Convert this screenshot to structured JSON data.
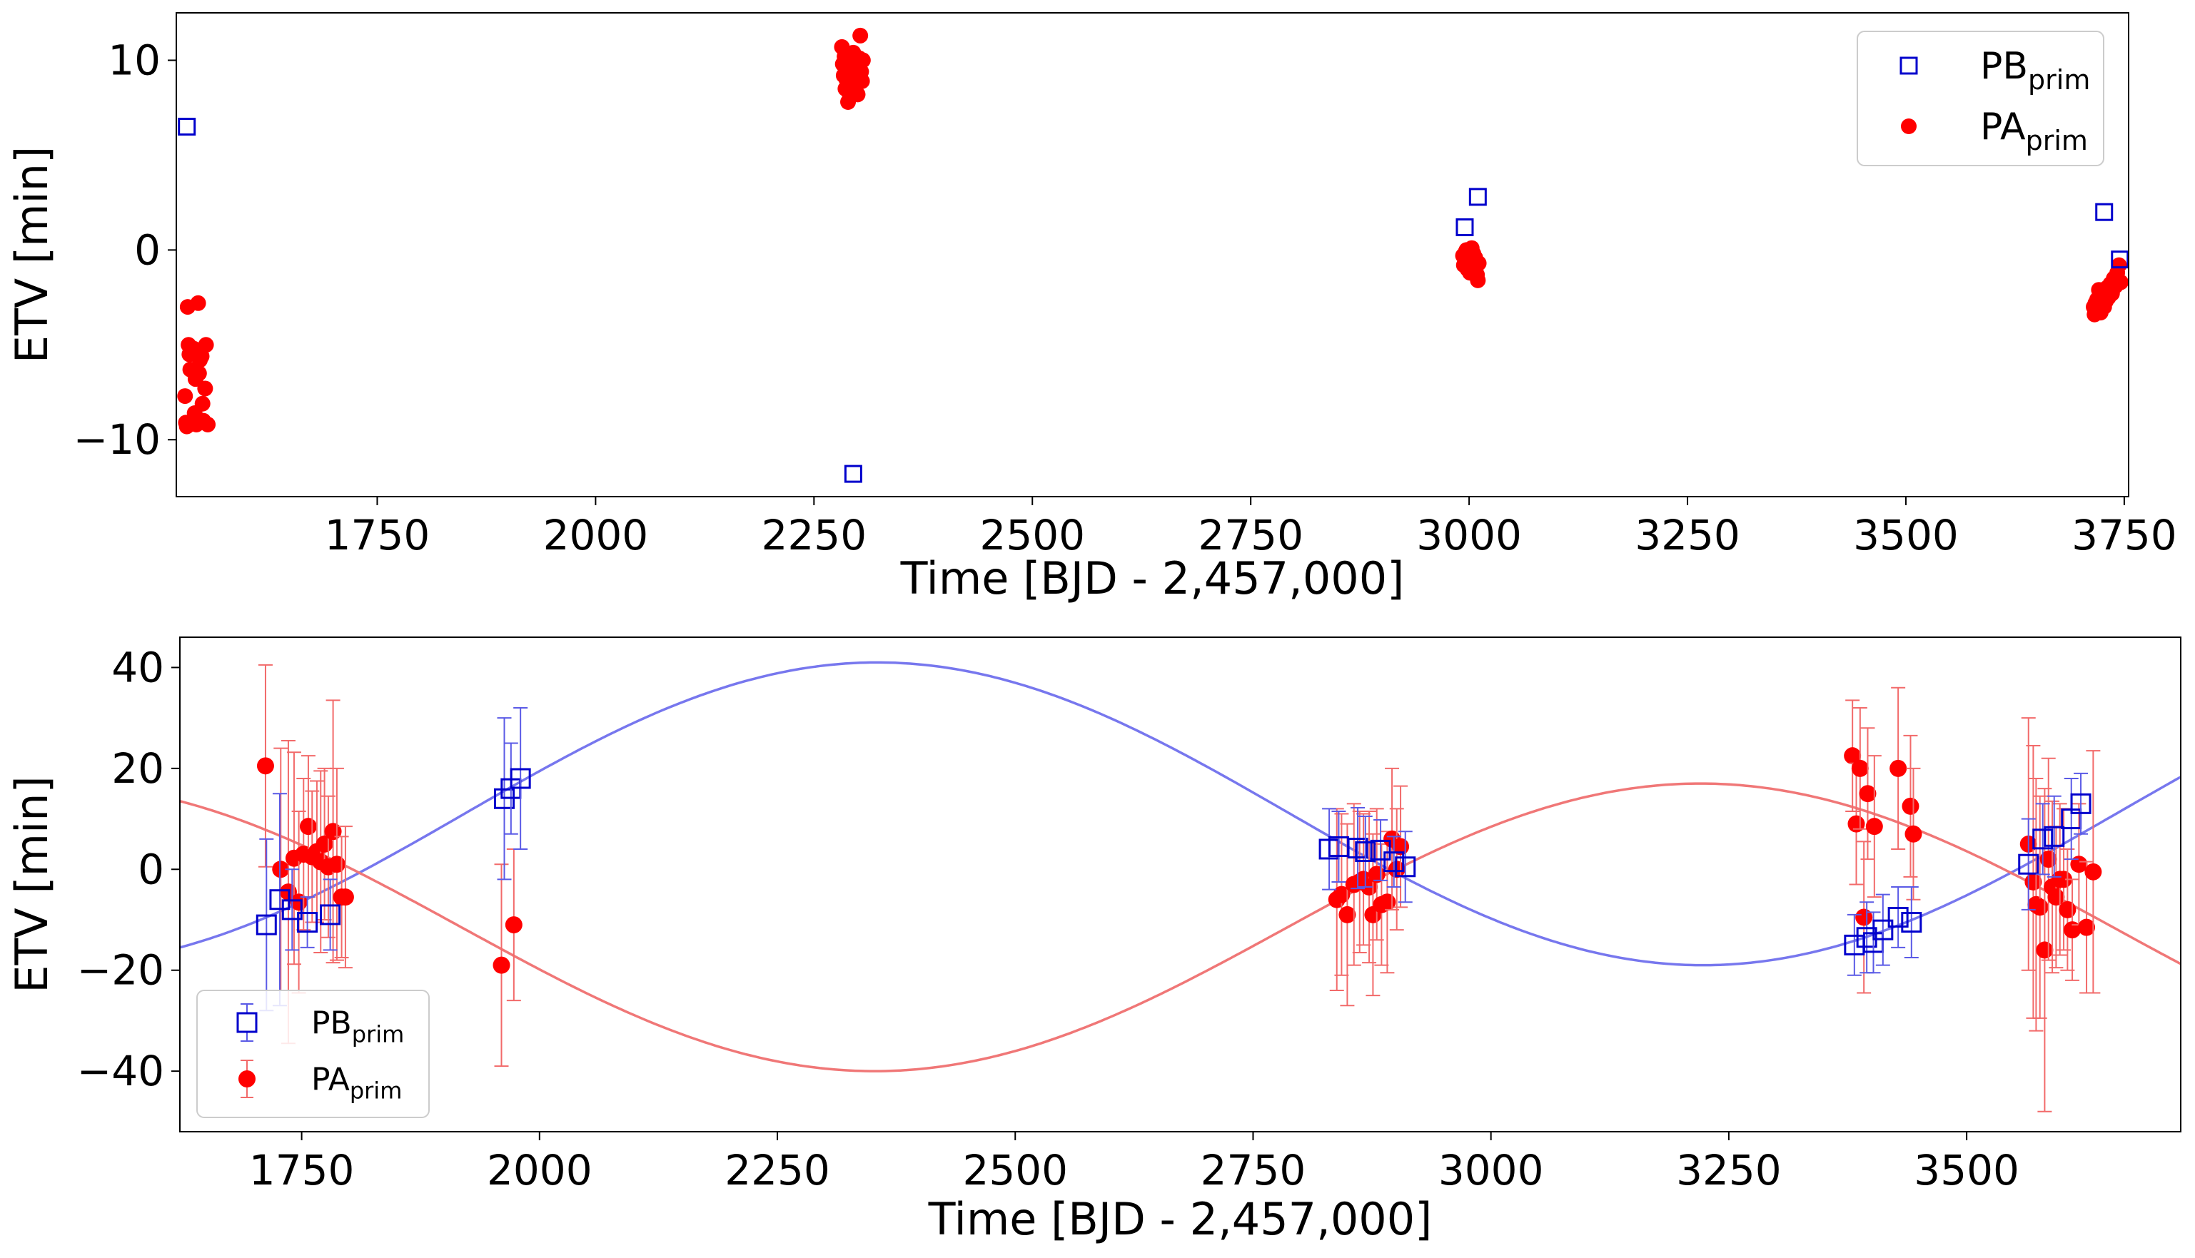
{
  "chart_data": [
    {
      "type": "scatter",
      "xlabel": "Time [BJD - 2,457,000]",
      "ylabel": "ETV [min]",
      "xlim": [
        1520,
        3755
      ],
      "ylim": [
        -13,
        12.5
      ],
      "xticks": [
        1750,
        2000,
        2250,
        2500,
        2750,
        3000,
        3250,
        3500,
        3750
      ],
      "yticks": [
        -10,
        0,
        10
      ],
      "legend": {
        "position": "top-right",
        "entries": [
          {
            "base": "PB",
            "sub": "prim",
            "series": "PB_prim"
          },
          {
            "base": "PA",
            "sub": "prim",
            "series": "PA_prim"
          }
        ]
      },
      "series": [
        {
          "name": "PB_prim",
          "marker": "open-square",
          "color": "#0000cc",
          "points": [
            [
              1532,
              6.5
            ],
            [
              2295,
              -11.8
            ],
            [
              2995,
              1.2
            ],
            [
              3010,
              2.8
            ],
            [
              3727,
              2.0
            ],
            [
              3745,
              -0.5
            ]
          ]
        },
        {
          "name": "PA_prim",
          "marker": "filled-circle",
          "color": "#ff0000",
          "points": [
            [
              1530,
              -7.7
            ],
            [
              1531,
              -9.1
            ],
            [
              1532,
              -9.3
            ],
            [
              1533,
              -3.0
            ],
            [
              1534,
              -5.0
            ],
            [
              1535,
              -5.5
            ],
            [
              1536,
              -6.3
            ],
            [
              1538,
              -9.0
            ],
            [
              1540,
              -5.2
            ],
            [
              1541,
              -8.6
            ],
            [
              1542,
              -6.8
            ],
            [
              1543,
              -9.2
            ],
            [
              1545,
              -2.8
            ],
            [
              1546,
              -6.5
            ],
            [
              1547,
              -5.8
            ],
            [
              1549,
              -5.6
            ],
            [
              1550,
              -8.1
            ],
            [
              1551,
              -9.0
            ],
            [
              1553,
              -7.3
            ],
            [
              1554,
              -5.0
            ],
            [
              1556,
              -9.2
            ],
            [
              2282,
              10.7
            ],
            [
              2283,
              9.8
            ],
            [
              2284,
              9.2
            ],
            [
              2285,
              10.2
            ],
            [
              2286,
              8.5
            ],
            [
              2287,
              9.0
            ],
            [
              2288,
              9.8
            ],
            [
              2289,
              7.8
            ],
            [
              2290,
              8.3
            ],
            [
              2291,
              9.5
            ],
            [
              2292,
              10.0
            ],
            [
              2293,
              8.8
            ],
            [
              2294,
              9.3
            ],
            [
              2295,
              10.4
            ],
            [
              2296,
              8.7
            ],
            [
              2297,
              9.7
            ],
            [
              2298,
              10.2
            ],
            [
              2299,
              9.0
            ],
            [
              2300,
              8.2
            ],
            [
              2301,
              9.6
            ],
            [
              2302,
              10.1
            ],
            [
              2303,
              11.3
            ],
            [
              2304,
              9.4
            ],
            [
              2305,
              8.9
            ],
            [
              2306,
              10.0
            ],
            [
              2993,
              -0.3
            ],
            [
              2994,
              -0.8
            ],
            [
              2996,
              -0.1
            ],
            [
              2997,
              0.0
            ],
            [
              2998,
              -1.0
            ],
            [
              2999,
              -0.5
            ],
            [
              3000,
              -0.3
            ],
            [
              3001,
              -1.2
            ],
            [
              3002,
              -0.6
            ],
            [
              3003,
              0.1
            ],
            [
              3004,
              -0.8
            ],
            [
              3005,
              -0.2
            ],
            [
              3006,
              -1.1
            ],
            [
              3007,
              -0.4
            ],
            [
              3008,
              -0.9
            ],
            [
              3009,
              -1.3
            ],
            [
              3010,
              -1.6
            ],
            [
              3011,
              -0.7
            ],
            [
              3715,
              -3.0
            ],
            [
              3716,
              -3.4
            ],
            [
              3717,
              -2.8
            ],
            [
              3718,
              -3.2
            ],
            [
              3719,
              -2.6
            ],
            [
              3720,
              -3.1
            ],
            [
              3721,
              -2.1
            ],
            [
              3722,
              -2.9
            ],
            [
              3723,
              -3.3
            ],
            [
              3724,
              -2.5
            ],
            [
              3725,
              -2.8
            ],
            [
              3726,
              -2.2
            ],
            [
              3727,
              -3.0
            ],
            [
              3728,
              -2.4
            ],
            [
              3729,
              -2.7
            ],
            [
              3730,
              -2.0
            ],
            [
              3732,
              -2.5
            ],
            [
              3734,
              -1.8
            ],
            [
              3736,
              -2.3
            ],
            [
              3738,
              -1.5
            ],
            [
              3740,
              -1.9
            ],
            [
              3742,
              -1.2
            ],
            [
              3744,
              -0.8
            ],
            [
              3746,
              -1.7
            ]
          ]
        }
      ]
    },
    {
      "type": "scatter",
      "xlabel": "Time [BJD - 2,457,000]",
      "ylabel": "ETV [min]",
      "xlim": [
        1622,
        3725
      ],
      "ylim": [
        -52,
        46
      ],
      "xticks": [
        1750,
        2000,
        2250,
        2500,
        2750,
        3000,
        3250,
        3500
      ],
      "yticks": [
        -40,
        -20,
        0,
        20,
        40
      ],
      "legend": {
        "position": "bottom-left",
        "entries": [
          {
            "base": "PB",
            "sub": "prim",
            "series": "PB_prim"
          },
          {
            "base": "PA",
            "sub": "prim",
            "series": "PA_prim"
          }
        ]
      },
      "models": [
        {
          "name": "PB_model",
          "color": "#7777ee",
          "offset": 11,
          "amplitude": 30,
          "period": 1736,
          "peak": 2355
        },
        {
          "name": "PA_model",
          "color": "#f07777",
          "offset": -11.5,
          "amplitude": 28.5,
          "period": 1736,
          "peak": 3220
        }
      ],
      "series": [
        {
          "name": "PB_prim",
          "marker": "open-square",
          "color": "#0000cc",
          "points": [
            [
              1713,
              -11,
              17
            ],
            [
              1727,
              -6,
              21
            ],
            [
              1740,
              -8,
              8
            ],
            [
              1756,
              -10.5,
              5
            ],
            [
              1780,
              -9,
              7
            ],
            [
              1963,
              14,
              16
            ],
            [
              1970,
              16,
              9
            ],
            [
              1980,
              18,
              14
            ],
            [
              2830,
              4,
              8
            ],
            [
              2840,
              4.5,
              7
            ],
            [
              2860,
              4.2,
              8
            ],
            [
              2868,
              3.5,
              7
            ],
            [
              2884,
              3.8,
              6
            ],
            [
              2898,
              1.5,
              5
            ],
            [
              2910,
              0.5,
              7
            ],
            [
              3382,
              -15,
              6
            ],
            [
              3395,
              -13.5,
              7
            ],
            [
              3402,
              -14.5,
              6
            ],
            [
              3412,
              -12,
              7
            ],
            [
              3428,
              -9.5,
              6
            ],
            [
              3442,
              -10.5,
              7
            ],
            [
              3565,
              1,
              9
            ],
            [
              3580,
              6,
              7
            ],
            [
              3592,
              6.5,
              8
            ],
            [
              3610,
              10,
              8
            ],
            [
              3620,
              13,
              6
            ]
          ]
        },
        {
          "name": "PA_prim",
          "marker": "filled-circle",
          "color": "#ff0000",
          "points": [
            [
              1712,
              20.5,
              20
            ],
            [
              1728,
              0,
              24
            ],
            [
              1736,
              -4.5,
              30
            ],
            [
              1742,
              2.2,
              21
            ],
            [
              1747,
              -6.5,
              18
            ],
            [
              1752,
              3,
              15
            ],
            [
              1757,
              8.5,
              14
            ],
            [
              1761,
              2.5,
              13
            ],
            [
              1766,
              3.5,
              14
            ],
            [
              1770,
              1.5,
              18
            ],
            [
              1774,
              5,
              15
            ],
            [
              1778,
              0.5,
              14
            ],
            [
              1783,
              7.5,
              26
            ],
            [
              1787,
              1,
              19
            ],
            [
              1792,
              -5.5,
              12
            ],
            [
              1796,
              -5.5,
              14
            ],
            [
              1960,
              -19,
              20
            ],
            [
              1973,
              -11,
              15
            ],
            [
              2838,
              -6,
              18
            ],
            [
              2843,
              -5,
              16
            ],
            [
              2849,
              -9,
              18
            ],
            [
              2856,
              -3,
              16
            ],
            [
              2862,
              -2.5,
              14
            ],
            [
              2866,
              -2,
              13
            ],
            [
              2872,
              -3.5,
              15
            ],
            [
              2876,
              -9,
              16
            ],
            [
              2880,
              -1,
              13
            ],
            [
              2885,
              -7,
              12
            ],
            [
              2891,
              -6.5,
              14
            ],
            [
              2896,
              6,
              14
            ],
            [
              2901,
              0,
              12
            ],
            [
              2905,
              4.5,
              12
            ],
            [
              3380,
              22.5,
              11
            ],
            [
              3384,
              9,
              12
            ],
            [
              3388,
              20,
              12
            ],
            [
              3392,
              -9.5,
              15
            ],
            [
              3396,
              15,
              13
            ],
            [
              3403,
              8.5,
              14
            ],
            [
              3428,
              20,
              16
            ],
            [
              3441,
              12.5,
              14
            ],
            [
              3444,
              7,
              13
            ],
            [
              3565,
              5,
              25
            ],
            [
              3570,
              -2.5,
              27
            ],
            [
              3573,
              -7,
              25
            ],
            [
              3577,
              -7.5,
              22
            ],
            [
              3582,
              -16,
              32
            ],
            [
              3586,
              2,
              20
            ],
            [
              3590,
              -3.5,
              17
            ],
            [
              3594,
              -5.5,
              14
            ],
            [
              3598,
              -2,
              15
            ],
            [
              3602,
              -2,
              14
            ],
            [
              3606,
              -8,
              12
            ],
            [
              3611,
              -12,
              10
            ],
            [
              3618,
              1,
              12
            ],
            [
              3626,
              -11.5,
              13
            ],
            [
              3633,
              -0.5,
              24
            ]
          ]
        }
      ]
    }
  ]
}
